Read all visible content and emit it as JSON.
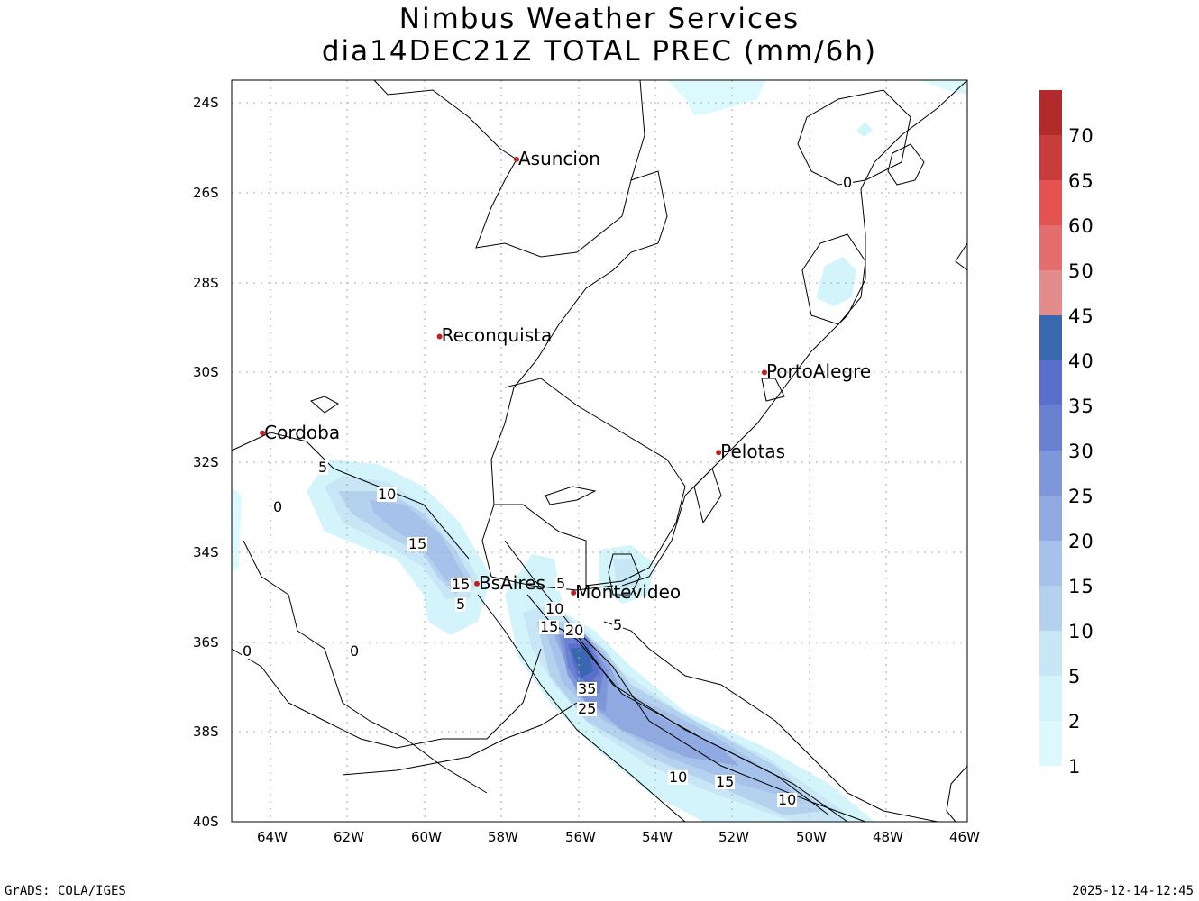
{
  "title_line1": "Nimbus Weather Services",
  "title_line2": "dia14DEC21Z TOTAL PREC (mm/6h)",
  "lat_ticks": [
    "24S",
    "26S",
    "28S",
    "30S",
    "32S",
    "34S",
    "36S",
    "38S",
    "40S"
  ],
  "lon_ticks": [
    "64W",
    "62W",
    "60W",
    "58W",
    "56W",
    "54W",
    "52W",
    "50W",
    "48W",
    "46W"
  ],
  "cities": [
    {
      "name": "Asuncion",
      "lon": -57.6,
      "lat": -25.26
    },
    {
      "name": "Reconquista",
      "lon": -59.6,
      "lat": -29.2
    },
    {
      "name": "PortoAlegre",
      "lon": -51.16,
      "lat": -30.0
    },
    {
      "name": "Cordoba",
      "lon": -64.2,
      "lat": -31.35
    },
    {
      "name": "Pelotas",
      "lon": -52.35,
      "lat": -31.78
    },
    {
      "name": "BsAires",
      "lon": -58.63,
      "lat": -34.7
    },
    {
      "name": "Montevideo",
      "lon": -56.12,
      "lat": -34.9
    }
  ],
  "contour_labels": [
    "0",
    "5",
    "10",
    "15",
    "0",
    "15",
    "5",
    "5",
    "10",
    "15",
    "20",
    "35",
    "25",
    "5",
    "0",
    "0",
    "10",
    "15",
    "10"
  ],
  "colorbar": {
    "labels": [
      "70",
      "65",
      "60",
      "50",
      "45",
      "40",
      "35",
      "30",
      "25",
      "20",
      "15",
      "10",
      "5",
      "2",
      "1"
    ],
    "colors": [
      "#b22a2a",
      "#c83c3c",
      "#e45252",
      "#e46e6e",
      "#e48c8c",
      "#3a68b0",
      "#5a6ecc",
      "#6a80d0",
      "#7e96da",
      "#90a9e0",
      "#a6c2ea",
      "#b4d2ee",
      "#c8e6f6",
      "#d2f4fa",
      "#dcfafe"
    ]
  },
  "footer_left": "GrADS: COLA/IGES",
  "footer_right": "2025-12-14-12:45"
}
